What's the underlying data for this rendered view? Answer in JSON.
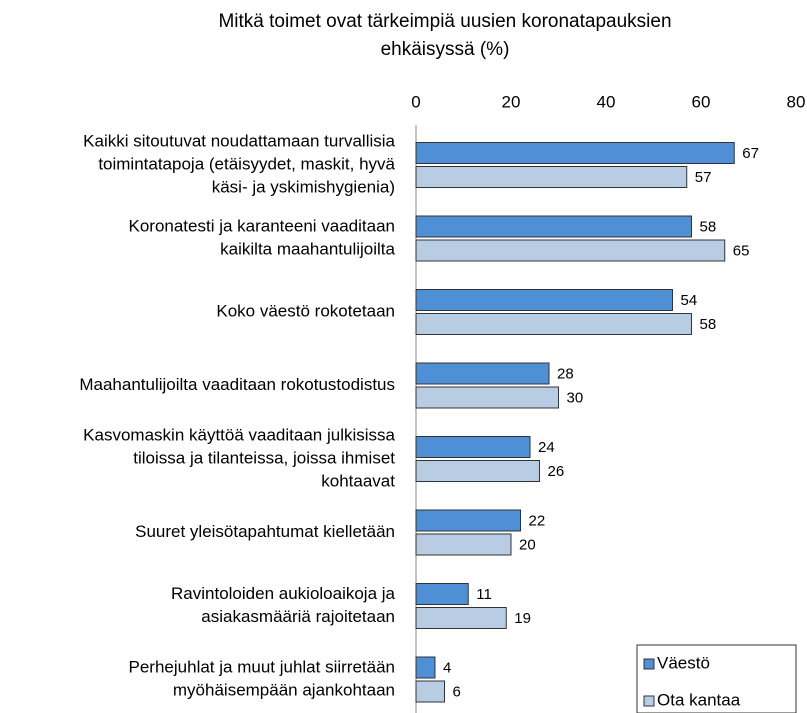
{
  "chart_data": {
    "type": "barh",
    "title": [
      "Mitkä toimet ovat tärkeimpiä uusien koronatapauksien",
      "ehkäisyssä (%)"
    ],
    "categories": [
      [
        "Kaikki sitoutuvat noudattamaan turvallisia",
        "toimintatapoja (etäisyydet, maskit, hyvä",
        "käsi- ja yskimishygienia)"
      ],
      [
        "Koronatesti ja karanteeni vaaditaan",
        "kaikilta maahantulijoilta"
      ],
      [
        "Koko väestö rokotetaan"
      ],
      [
        "Maahantulijoilta vaaditaan rokotustodistus"
      ],
      [
        "Kasvomaskin käyttöä vaaditaan julkisissa",
        "tiloissa ja tilanteissa, joissa ihmiset",
        "kohtaavat"
      ],
      [
        "Suuret yleisötapahtumat kielletään"
      ],
      [
        "Ravintoloiden aukioloaikoja ja",
        "asiakasmääriä rajoitetaan"
      ],
      [
        "Perhejuhlat ja muut juhlat siirretään",
        "myöhäisempään ajankohtaan"
      ]
    ],
    "series": [
      {
        "name": "Väestö",
        "color": "#4f8fd6",
        "values": [
          67,
          58,
          54,
          28,
          24,
          22,
          11,
          4
        ]
      },
      {
        "name": "Ota kantaa",
        "color": "#b8cce4",
        "values": [
          57,
          65,
          58,
          30,
          26,
          20,
          19,
          6
        ]
      }
    ],
    "xlim": [
      0,
      80
    ],
    "xticks": [
      0,
      20,
      40,
      60,
      80
    ],
    "legend": "lower right"
  }
}
